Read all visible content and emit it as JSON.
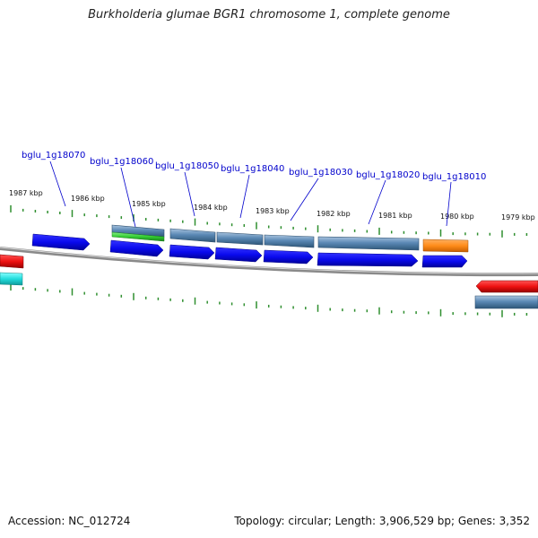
{
  "title": "Burkholderia glumae BGR1 chromosome 1, complete genome",
  "footer": {
    "accession": "Accession: NC_012724",
    "topology": "Topology: circular; Length: 3,906,529 bp; Genes: 3,352"
  },
  "colors": {
    "backbone": "#8a8a8a",
    "tick": "#2f8f2f",
    "cds_forward": "#0a0aee",
    "gene_bar": "#5b89b5",
    "rna": "#33cc33",
    "highlight": "#ff8c1a",
    "red_feature": "#ee1111",
    "cyan_feature": "#22dddd",
    "label": "#0000cc"
  },
  "kbp_labels": [
    "1987 kbp",
    "1986 kbp",
    "1985 kbp",
    "1984 kbp",
    "1983 kbp",
    "1982 kbp",
    "1981 kbp",
    "1980 kbp",
    "1979 kbp"
  ],
  "gene_labels": [
    "bglu_1g18070",
    "bglu_1g18060",
    "bglu_1g18050",
    "bglu_1g18040",
    "bglu_1g18030",
    "bglu_1g18020",
    "bglu_1g18010"
  ]
}
